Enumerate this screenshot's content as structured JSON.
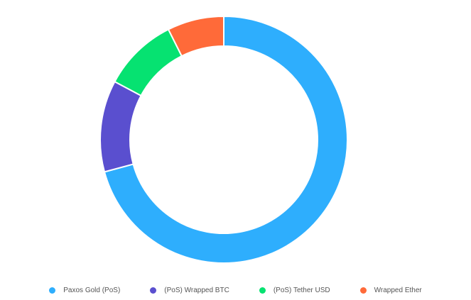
{
  "chart_data": {
    "type": "pie",
    "variant": "donut",
    "title": "",
    "categories": [
      "Paxos Gold (PoS)",
      "(PoS) Wrapped BTC",
      "(PoS) Tether USD",
      "Wrapped Ether"
    ],
    "values": [
      70.8,
      12.0,
      9.8,
      7.4
    ],
    "unit": "percent",
    "colors": [
      "#2eaefd",
      "#5a4fcf",
      "#06e271",
      "#ff6a39"
    ],
    "legend_position": "bottom",
    "start_angle": "top",
    "direction": "clockwise"
  }
}
